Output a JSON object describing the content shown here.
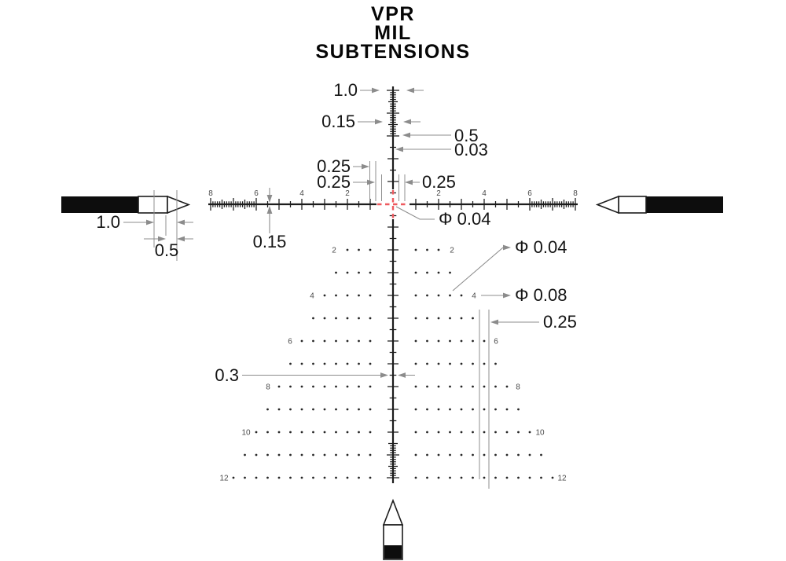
{
  "title": {
    "lines": [
      "VPR",
      "MIL",
      "SUBTENSIONS"
    ]
  },
  "axis": {
    "left_labels": [
      "8",
      "6",
      "4",
      "2"
    ],
    "right_labels": [
      "2",
      "4",
      "6",
      "8"
    ],
    "tree_labels": [
      "2",
      "4",
      "6",
      "8",
      "10",
      "12"
    ]
  },
  "annotations": {
    "top_tick_width": "1.0",
    "top_fine_spacing": "0.15",
    "half_tick_width": "0.5",
    "stadia_line_thickness": "0.03",
    "center_gap_a": "0.25",
    "center_gap_b": "0.25",
    "center_gap_right": "0.25",
    "center_dot_dia": "Φ 0.04",
    "tree_dot_dia": "Φ 0.04",
    "tree_large_dot_dia": "Φ 0.08",
    "tree_dot_spacing": "0.25",
    "tree_tick_width": "0.3",
    "main_line_thickness": "0.15",
    "post_tip_length": "1.0",
    "post_tip_half": "0.5"
  },
  "colors": {
    "reticle": "#1c1c1c",
    "dimension": "#8c8c8c",
    "center_cross": "#ee5a5f",
    "small_labels": "#4a4a4a",
    "text": "#141414"
  }
}
